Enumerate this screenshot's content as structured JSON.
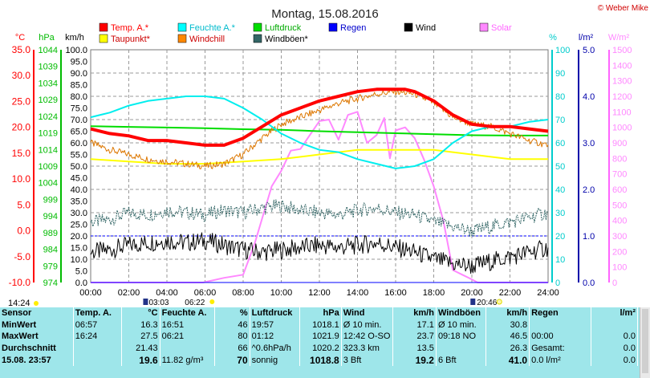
{
  "chart_data": {
    "type": "line",
    "title": "Montag, 15.08.2016",
    "copyright": "© Weber Mike",
    "x_range": [
      "00:00",
      "24:00"
    ],
    "x_ticks": [
      "00:00",
      "02:00",
      "04:00",
      "06:00",
      "08:00",
      "10:00",
      "12:00",
      "14:00",
      "16:00",
      "18:00",
      "20:00",
      "22:00",
      "24:00"
    ],
    "axes": {
      "temp_c": {
        "label": "°C",
        "color": "#ff0000",
        "ylim": [
          -10,
          35
        ],
        "ticks": [
          "35.0",
          "30.0",
          "25.0",
          "20.0",
          "15.0",
          "10.0",
          "5.0",
          "0.0",
          "-5.0",
          "-10.0"
        ]
      },
      "pressure_hpa": {
        "label": "hPa",
        "color": "#00bb00",
        "ylim": [
          974,
          1044
        ],
        "ticks": [
          "1044",
          "1039",
          "1034",
          "1029",
          "1024",
          "1019",
          "1014",
          "1009",
          "1004",
          "999",
          "994",
          "989",
          "984",
          "979",
          "974"
        ]
      },
      "wind_kmh": {
        "label": "km/h",
        "color": "#000000",
        "ylim": [
          0,
          100
        ],
        "ticks": [
          "100.0",
          "95.0",
          "90.0",
          "85.0",
          "80.0",
          "75.0",
          "70.0",
          "65.0",
          "60.0",
          "55.0",
          "50.0",
          "45.0",
          "40.0",
          "35.0",
          "30.0",
          "25.0",
          "20.0",
          "15.0",
          "10.0",
          "5.0",
          "0.0"
        ]
      },
      "humidity_pct": {
        "label": "%",
        "color": "#00cccc",
        "ylim": [
          0,
          100
        ],
        "ticks": [
          "100",
          "90",
          "80",
          "70",
          "60",
          "50",
          "40",
          "30",
          "20",
          "10",
          "0"
        ]
      },
      "rain_lm2": {
        "label": "l/m²",
        "color": "#0000aa",
        "ylim": [
          0,
          5
        ],
        "ticks": [
          "5.0",
          "4.0",
          "3.0",
          "2.0",
          "1.0",
          "0.0"
        ]
      },
      "solar_wm2": {
        "label": "W/m²",
        "color": "#ff88ff",
        "ylim": [
          0,
          1500
        ],
        "ticks": [
          "1500",
          "1400",
          "1300",
          "1200",
          "1100",
          "1000",
          "900",
          "800",
          "700",
          "600",
          "500",
          "400",
          "300",
          "200",
          "100",
          "0"
        ]
      }
    },
    "legend": [
      {
        "name": "Temp. A.*",
        "color": "#ff0000"
      },
      {
        "name": "Feuchte A.*",
        "color": "#00ffff"
      },
      {
        "name": "Luftdruck",
        "color": "#00dd00"
      },
      {
        "name": "Regen",
        "color": "#0000ff"
      },
      {
        "name": "Wind",
        "color": "#000000"
      },
      {
        "name": "Solar",
        "color": "#ff88ff"
      },
      {
        "name": "Taupunkt*",
        "color": "#ffff00"
      },
      {
        "name": "Windchill",
        "color": "#ff8800"
      },
      {
        "name": "Windböen*",
        "color": "#336666"
      }
    ],
    "series": [
      {
        "key": "temp",
        "axis": "wind_kmh",
        "color": "#ff0000",
        "width": 4,
        "x": [
          0,
          1,
          2,
          3,
          4,
          5,
          6,
          7,
          8,
          9,
          10,
          11,
          12,
          13,
          14,
          15,
          16,
          16.5,
          17,
          18,
          19,
          20,
          21,
          22,
          23,
          24
        ],
        "y": [
          66,
          64,
          63,
          61,
          61,
          60,
          59,
          59,
          62,
          67,
          72,
          75,
          78,
          80,
          82,
          83,
          83,
          83,
          82,
          78,
          72,
          68,
          67,
          67,
          66,
          65
        ]
      },
      {
        "key": "windchill",
        "axis": "wind_kmh",
        "color": "#dd7700",
        "width": 1,
        "x": [
          0,
          1,
          2,
          3,
          4,
          5,
          6,
          7,
          8,
          9,
          10,
          11,
          12,
          13,
          14,
          15,
          16,
          17,
          18,
          19,
          20,
          21,
          22,
          23,
          24
        ],
        "y": [
          60,
          57,
          55,
          53,
          52,
          51,
          50,
          51,
          55,
          62,
          68,
          71,
          74,
          77,
          79,
          81,
          82,
          81,
          77,
          71,
          68,
          67,
          64,
          61,
          59
        ]
      },
      {
        "key": "humidity",
        "axis": "humidity_pct",
        "color": "#00eeee",
        "width": 2,
        "x": [
          0,
          1,
          2,
          3,
          4,
          5,
          6,
          7,
          8,
          9,
          10,
          11,
          12,
          13,
          14,
          15,
          16,
          17,
          18,
          19,
          20,
          21,
          22,
          23,
          24
        ],
        "y": [
          71,
          73,
          76,
          78,
          79,
          80,
          80,
          79,
          75,
          70,
          64,
          60,
          57,
          56,
          53,
          51,
          49,
          50,
          53,
          60,
          65,
          67,
          67,
          69,
          70
        ]
      },
      {
        "key": "pressure",
        "axis": "pressure_hpa",
        "color": "#00dd00",
        "width": 2,
        "x": [
          0,
          2,
          4,
          6,
          8,
          10,
          12,
          14,
          16,
          18,
          20,
          22,
          24
        ],
        "y": [
          1021.0,
          1020.8,
          1020.6,
          1020.4,
          1020.1,
          1019.9,
          1019.5,
          1019.2,
          1018.9,
          1018.6,
          1018.3,
          1018.2,
          1018.2
        ]
      },
      {
        "key": "dewpoint",
        "axis": "wind_kmh",
        "color": "#ffff00",
        "width": 2,
        "x": [
          0,
          2,
          4,
          6,
          8,
          10,
          12,
          14,
          16,
          18,
          20,
          22,
          24
        ],
        "y": [
          53,
          52,
          51,
          51,
          52,
          53,
          55,
          57,
          57,
          57,
          55,
          53,
          53
        ]
      },
      {
        "key": "gusts",
        "axis": "wind_kmh",
        "color": "#336666",
        "width": 1,
        "x": [
          0,
          1,
          2,
          3,
          4,
          5,
          6,
          7,
          8,
          9,
          10,
          11,
          12,
          13,
          14,
          15,
          16,
          17,
          18,
          19,
          20,
          21,
          22,
          23,
          24
        ],
        "y": [
          26,
          27,
          30,
          29,
          31,
          30,
          29,
          31,
          30,
          32,
          33,
          31,
          30,
          29,
          31,
          32,
          30,
          29,
          26,
          24,
          22,
          24,
          26,
          28,
          30
        ]
      },
      {
        "key": "wind",
        "axis": "wind_kmh",
        "color": "#000000",
        "width": 1,
        "x": [
          0,
          1,
          2,
          3,
          4,
          5,
          6,
          7,
          8,
          9,
          10,
          11,
          12,
          13,
          14,
          15,
          16,
          17,
          18,
          19,
          20,
          21,
          22,
          23,
          24
        ],
        "y": [
          13,
          14,
          16,
          17,
          18,
          17,
          18,
          16,
          14,
          13,
          14,
          15,
          16,
          15,
          16,
          17,
          15,
          13,
          10,
          8,
          7,
          9,
          11,
          13,
          15
        ]
      },
      {
        "key": "solar",
        "axis": "solar_wm2",
        "color": "#ff88ff",
        "width": 2,
        "x": [
          0,
          5.9,
          7,
          8,
          8.6,
          9.5,
          10,
          10.5,
          11,
          11.5,
          12,
          12.5,
          13,
          13.5,
          14,
          14.5,
          15,
          15.4,
          15.7,
          16,
          16.5,
          17,
          17.5,
          18,
          18.5,
          19,
          19.5,
          20,
          20.3,
          24
        ],
        "y": [
          0,
          0,
          30,
          50,
          250,
          620,
          720,
          850,
          860,
          950,
          1040,
          1050,
          920,
          1080,
          1100,
          900,
          950,
          1060,
          800,
          980,
          1000,
          930,
          790,
          620,
          400,
          80,
          50,
          20,
          0,
          0
        ]
      },
      {
        "key": "rain",
        "axis": "rain_lm2",
        "color": "#0000ff",
        "width": 1,
        "x": [
          0,
          24
        ],
        "y": [
          0,
          0
        ]
      }
    ],
    "reference_line": {
      "value": 20,
      "axis": "wind_kmh",
      "color": "#0000ff"
    },
    "markers": {
      "left_time": "14:24",
      "sunrise": "06:22",
      "sunset": "20:46",
      "moonrise": "03:03"
    }
  },
  "table": {
    "headers": [
      "Sensor",
      "Temp. A.",
      "°C",
      "Feuchte A.",
      "%",
      "Luftdruck",
      "hPa",
      "Wind",
      "km/h",
      "Windböen",
      "km/h",
      "Regen",
      "l/m²"
    ],
    "rows": [
      [
        "MinWert",
        "06:57",
        "16.3",
        "16:51",
        "46",
        "19:57",
        "1018.1",
        "Ø 10 min.",
        "17.1",
        "Ø 10 min.",
        "30.8",
        "",
        ""
      ],
      [
        "MaxWert",
        "16:24",
        "27.5",
        "06:21",
        "80",
        "01:12",
        "1021.9",
        "12:42  O-SO",
        "23.7",
        "09:18  NO",
        "46.5",
        "00:00",
        "0.0"
      ],
      [
        "Durchschnitt",
        "",
        "21.43",
        "",
        "66",
        "^0.6hPa/h",
        "1020.2",
        "323.3 km",
        "13.5",
        "",
        "26.3",
        "Gesamt:",
        "0.0"
      ],
      [
        "15.08. 23:57",
        "",
        "19.6",
        "11.82 g/m³",
        "70",
        "sonnig",
        "1018.8",
        "3 Bft",
        "19.2",
        "6 Bft",
        "41.0",
        "0.0 l/m²",
        "0.0"
      ]
    ]
  }
}
